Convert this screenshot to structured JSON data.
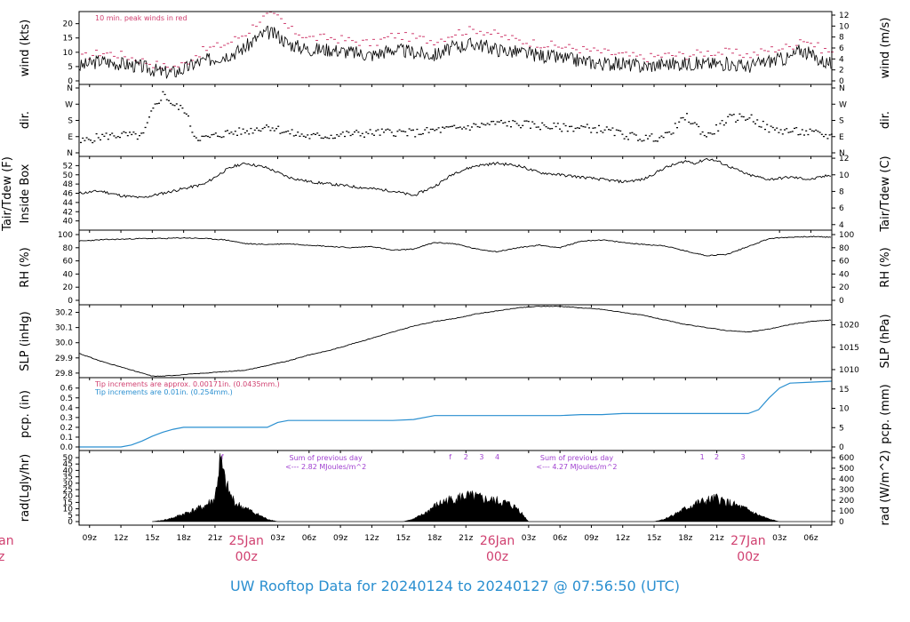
{
  "footer": {
    "title": "UW Rooftop Data for 20240124  to  20240127 @ 07:56:50  (UTC)"
  },
  "colors": {
    "trace": "#000000",
    "peak": "#d04070",
    "precip_line": "#2a8fd0",
    "annotation_purple": "#a040d0",
    "annotation_pink": "#d04070",
    "footer_blue": "#2a8fd0"
  },
  "x_axis": {
    "start_hour": 8,
    "end_hour": 80,
    "tick_labels": [
      "09z",
      "12z",
      "15z",
      "18z",
      "21z",
      "03z",
      "06z",
      "09z",
      "12z",
      "15z",
      "18z",
      "21z",
      "03z",
      "06z",
      "09z",
      "12z",
      "15z",
      "18z",
      "21z",
      "03z",
      "06z"
    ],
    "tick_hours": [
      9,
      12,
      15,
      18,
      21,
      27,
      30,
      33,
      36,
      39,
      42,
      45,
      51,
      54,
      57,
      60,
      63,
      66,
      69,
      75,
      78
    ],
    "date_labels": [
      {
        "hour": 24,
        "date": "25Jan",
        "time": "00z"
      },
      {
        "hour": 48,
        "date": "26Jan",
        "time": "00z"
      },
      {
        "hour": 72,
        "date": "27Jan",
        "time": "00z"
      }
    ],
    "clipped_left_label": {
      "date": "Jan",
      "time": "z"
    }
  },
  "chart_data": [
    {
      "type": "line",
      "name": "wind",
      "ylabel_left": "wind (kts)",
      "ylabel_right": "wind (m/s)",
      "ylim_left": [
        0,
        23
      ],
      "yticks_left": [
        "0",
        "5",
        "10",
        "15",
        "20"
      ],
      "ylim_right": [
        0,
        12
      ],
      "yticks_right": [
        "0",
        "2",
        "4",
        "6",
        "8",
        "10",
        "12"
      ],
      "annotation": "10 min. peak winds in red",
      "x": [
        8,
        10,
        12,
        14,
        15,
        16,
        17,
        18,
        19,
        20,
        21,
        22,
        23,
        24,
        25,
        26,
        27,
        28,
        30,
        32,
        34,
        36,
        38,
        40,
        42,
        44,
        46,
        48,
        50,
        52,
        54,
        56,
        58,
        60,
        62,
        64,
        66,
        68,
        70,
        72,
        74,
        76,
        77,
        78,
        79,
        80
      ],
      "series": [
        {
          "name": "wind",
          "values": [
            5,
            7,
            6,
            5,
            4,
            3,
            3,
            4,
            6,
            7,
            8,
            9,
            10,
            12,
            15,
            17,
            16,
            13,
            11,
            11,
            10,
            9,
            11,
            10,
            9,
            12,
            13,
            11,
            10,
            9,
            8,
            7,
            6,
            6,
            5,
            6,
            6,
            6,
            6,
            5,
            7,
            8,
            11,
            9,
            7,
            6
          ]
        },
        {
          "name": "peak",
          "values": [
            8,
            10,
            9,
            7,
            6,
            5,
            5,
            6,
            9,
            11,
            12,
            13,
            15,
            17,
            21,
            23,
            22,
            18,
            15,
            15,
            14,
            13,
            16,
            15,
            14,
            17,
            18,
            16,
            14,
            13,
            12,
            11,
            10,
            9,
            8,
            9,
            9,
            10,
            10,
            9,
            11,
            12,
            15,
            13,
            11,
            10
          ]
        }
      ]
    },
    {
      "type": "scatter",
      "name": "dir",
      "ylabel_left": "dir.",
      "ylabel_right": "dir.",
      "yticks_left": [
        "N",
        "E",
        "S",
        "W",
        "N"
      ],
      "yticks_right": [
        "N",
        "E",
        "S",
        "W",
        "N"
      ],
      "ylim": [
        0,
        360
      ],
      "x": [
        8,
        10,
        12,
        14,
        15,
        16,
        17,
        18,
        19,
        20,
        22,
        24,
        26,
        28,
        30,
        32,
        34,
        36,
        38,
        40,
        42,
        44,
        46,
        48,
        50,
        52,
        54,
        56,
        58,
        60,
        62,
        64,
        66,
        68,
        70,
        72,
        74,
        76,
        78,
        80
      ],
      "values": [
        60,
        90,
        100,
        90,
        240,
        330,
        260,
        240,
        90,
        80,
        110,
        120,
        150,
        110,
        90,
        95,
        105,
        110,
        115,
        110,
        125,
        135,
        150,
        165,
        160,
        150,
        140,
        140,
        130,
        100,
        80,
        90,
        200,
        90,
        190,
        200,
        130,
        120,
        110,
        90
      ]
    },
    {
      "type": "line",
      "name": "temp",
      "ylabel_left_1": "Tair/Tdew (F)",
      "ylabel_left_2": "Inside Box",
      "ylabel_right": "Tair/Tdew (C)",
      "ylim_left": [
        38,
        54
      ],
      "yticks_left": [
        "40",
        "42",
        "44",
        "46",
        "48",
        "50",
        "52"
      ],
      "ylim_right": [
        4,
        12
      ],
      "yticks_right": [
        "4",
        "6",
        "8",
        "10",
        "12"
      ],
      "x": [
        8,
        10,
        12,
        14,
        16,
        18,
        20,
        22,
        23,
        24,
        26,
        28,
        30,
        32,
        34,
        36,
        38,
        40,
        42,
        44,
        46,
        48,
        50,
        52,
        54,
        56,
        58,
        60,
        62,
        64,
        66,
        67,
        68,
        69,
        70,
        72,
        74,
        76,
        78,
        80
      ],
      "values": [
        46,
        46.5,
        45.5,
        45,
        46,
        47,
        48,
        51,
        52,
        52.5,
        51.5,
        49.5,
        48.5,
        48,
        47.5,
        47,
        46.5,
        45.5,
        47.5,
        50.5,
        52,
        52.5,
        52,
        50.5,
        50,
        49.5,
        49,
        48.5,
        49,
        51.5,
        53,
        52.5,
        53.5,
        53,
        52,
        50,
        49,
        49.5,
        49,
        50
      ]
    },
    {
      "type": "line",
      "name": "rh",
      "ylabel_left": "RH (%)",
      "ylabel_right": "RH (%)",
      "ylim": [
        0,
        100
      ],
      "yticks_left": [
        "0",
        "20",
        "40",
        "60",
        "80",
        "100"
      ],
      "yticks_right": [
        "0",
        "20",
        "40",
        "60",
        "80",
        "100"
      ],
      "x": [
        8,
        10,
        12,
        14,
        16,
        18,
        20,
        22,
        24,
        26,
        28,
        30,
        32,
        34,
        36,
        38,
        40,
        42,
        44,
        46,
        48,
        50,
        52,
        54,
        56,
        58,
        60,
        62,
        64,
        66,
        68,
        70,
        72,
        74,
        76,
        78,
        80
      ],
      "values": [
        90,
        92,
        93,
        94,
        94,
        95,
        94,
        92,
        86,
        85,
        86,
        84,
        82,
        80,
        82,
        76,
        78,
        88,
        86,
        78,
        74,
        80,
        84,
        80,
        90,
        92,
        88,
        85,
        83,
        75,
        68,
        70,
        82,
        94,
        96,
        97,
        96
      ]
    },
    {
      "type": "line",
      "name": "slp",
      "ylabel_left": "SLP (inHg)",
      "ylabel_right": "SLP (hPa)",
      "ylim_left": [
        29.77,
        30.25
      ],
      "yticks_left": [
        "29.8",
        "29.9",
        "30.0",
        "30.1",
        "30.2"
      ],
      "yticks_right": [
        "1010",
        "1015",
        "1020"
      ],
      "yticks_right_values_inhg": [
        29.823,
        29.97,
        30.118
      ],
      "x": [
        8,
        10,
        12,
        14,
        15,
        16,
        18,
        20,
        22,
        24,
        26,
        28,
        30,
        32,
        34,
        36,
        38,
        40,
        42,
        44,
        46,
        48,
        50,
        52,
        54,
        56,
        58,
        60,
        62,
        64,
        66,
        68,
        70,
        72,
        74,
        76,
        78,
        80
      ],
      "values": [
        29.93,
        29.88,
        29.84,
        29.8,
        29.78,
        29.78,
        29.79,
        29.8,
        29.81,
        29.82,
        29.85,
        29.88,
        29.92,
        29.95,
        29.99,
        30.03,
        30.07,
        30.11,
        30.14,
        30.16,
        30.19,
        30.21,
        30.23,
        30.24,
        30.24,
        30.23,
        30.22,
        30.2,
        30.18,
        30.15,
        30.12,
        30.1,
        30.08,
        30.07,
        30.09,
        30.12,
        30.14,
        30.15
      ]
    },
    {
      "type": "line",
      "name": "pcp",
      "ylabel_left": "pcp. (in)",
      "ylabel_right": "pcp. (mm)",
      "ylim_left": [
        0,
        0.67
      ],
      "yticks_left": [
        "0.0",
        "0.1",
        "0.2",
        "0.3",
        "0.4",
        "0.5",
        "0.6"
      ],
      "yticks_right": [
        "0",
        "5",
        "10",
        "15"
      ],
      "annotation_1": "Tip increments are approx. 0.00171in. (0.0435mm.)",
      "annotation_2": "Tip increments are 0.01in. (0.254mm.)",
      "x": [
        8,
        12,
        13,
        14,
        15,
        16,
        17,
        18,
        20,
        22,
        24,
        26,
        27,
        28,
        30,
        32,
        34,
        36,
        38,
        40,
        42,
        44,
        46,
        48,
        50,
        52,
        54,
        56,
        58,
        60,
        62,
        64,
        66,
        68,
        70,
        71,
        72,
        73,
        74,
        75,
        76,
        78,
        80
      ],
      "values": [
        0,
        0,
        0.02,
        0.06,
        0.11,
        0.15,
        0.18,
        0.2,
        0.2,
        0.2,
        0.2,
        0.2,
        0.25,
        0.27,
        0.27,
        0.27,
        0.27,
        0.27,
        0.27,
        0.28,
        0.32,
        0.32,
        0.32,
        0.32,
        0.32,
        0.32,
        0.32,
        0.33,
        0.33,
        0.34,
        0.34,
        0.34,
        0.34,
        0.34,
        0.34,
        0.34,
        0.34,
        0.38,
        0.5,
        0.6,
        0.65,
        0.66,
        0.67
      ]
    },
    {
      "type": "area",
      "name": "rad",
      "ylabel_left": "rad(Lgly/hr)",
      "ylabel_right": "rad (W/m^2)",
      "ylim_left": [
        0,
        51
      ],
      "yticks_left": [
        "0",
        "5",
        "10",
        "15",
        "20",
        "25",
        "30",
        "35",
        "40",
        "45",
        "50"
      ],
      "yticks_right": [
        "0",
        "100",
        "200",
        "300",
        "400",
        "500",
        "600"
      ],
      "annotations": [
        {
          "hour": 21.7,
          "text": "f"
        },
        {
          "hour": 43.5,
          "text": "f"
        },
        {
          "hour": 45,
          "text": "2"
        },
        {
          "hour": 46.5,
          "text": "3"
        },
        {
          "hour": 48,
          "text": "4"
        },
        {
          "hour": 67.6,
          "text": "1"
        },
        {
          "hour": 69,
          "text": "2"
        },
        {
          "hour": 71.5,
          "text": "3"
        }
      ],
      "sum_notes": [
        {
          "hour": 31.6,
          "line1": "Sum of previous day",
          "line2": "<--- 2.82 MJoules/m^2"
        },
        {
          "hour": 55.6,
          "line1": "Sum of previous day",
          "line2": "<--- 4.27 MJoules/m^2"
        }
      ],
      "x": [
        15,
        16,
        17,
        18,
        19,
        20,
        21,
        21.5,
        22,
        22.5,
        23,
        24,
        25,
        26,
        27,
        39,
        40,
        41,
        42,
        43,
        44,
        45,
        46,
        47,
        48,
        49,
        50,
        51,
        63,
        64,
        65,
        66,
        67,
        68,
        69,
        70,
        71,
        72,
        73,
        74,
        75
      ],
      "values": [
        0,
        1,
        3,
        6,
        9,
        12,
        18,
        48,
        30,
        20,
        14,
        10,
        6,
        2,
        0,
        0,
        2,
        6,
        12,
        16,
        18,
        20,
        19,
        17,
        16,
        14,
        10,
        0,
        0,
        2,
        6,
        10,
        14,
        16,
        18,
        15,
        12,
        9,
        5,
        2,
        0
      ]
    }
  ]
}
